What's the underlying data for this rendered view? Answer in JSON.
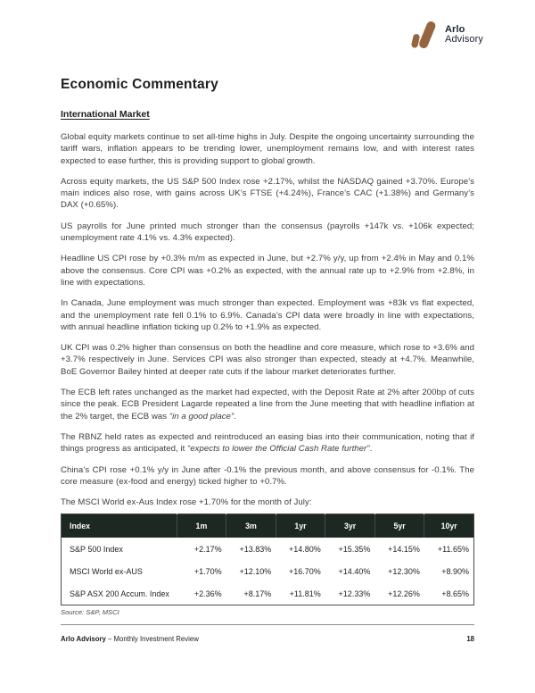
{
  "colors": {
    "logo_mark": "#96653F",
    "table_header_bg": "#1D2823"
  },
  "logo": {
    "brand_top": "Arlo",
    "brand_bottom": "Advisory"
  },
  "page_title": "Economic Commentary",
  "section_title": "International Market",
  "paragraphs": [
    {
      "segments": [
        {
          "text": "Global equity markets continue to set all-time highs in July. Despite the ongoing uncertainty surrounding the tariff wars, inflation appears to be trending lower, unemployment remains low, and with interest rates expected to ease further, this is providing support to global growth.",
          "italic": false
        }
      ]
    },
    {
      "segments": [
        {
          "text": "Across equity markets, the US S&P 500 Index rose +2.17%, whilst the NASDAQ gained +3.70%. Europe’s main indices also rose, with gains across UK’s FTSE (+4.24%), France’s CAC (+1.38%) and Germany’s DAX (+0.65%).",
          "italic": false
        }
      ]
    },
    {
      "segments": [
        {
          "text": "US payrolls for June printed much stronger than the consensus (payrolls +147k vs. +106k expected; unemployment rate 4.1% vs. 4.3% expected).",
          "italic": false
        }
      ]
    },
    {
      "segments": [
        {
          "text": "Headline US CPI rose by +0.3% m/m as expected in June, but +2.7% y/y, up from +2.4% in May and 0.1% above the consensus. Core CPI was +0.2% as expected, with the annual rate up to +2.9% from +2.8%, in line with expectations.",
          "italic": false
        }
      ]
    },
    {
      "segments": [
        {
          "text": "In Canada, June employment was much stronger than expected. Employment was +83k vs flat expected, and the unemployment rate fell 0.1% to 6.9%. Canada’s CPI data were broadly in line with expectations, with annual headline inflation ticking up 0.2% to +1.9% as expected.",
          "italic": false
        }
      ]
    },
    {
      "segments": [
        {
          "text": "UK CPI was 0.2% higher than consensus on both the headline and core measure, which rose to +3.6% and +3.7% respectively in June. Services CPI was also stronger than expected, steady at +4.7%. Meanwhile, BoE Governor Bailey hinted at deeper rate cuts if the labour market deteriorates further.",
          "italic": false
        }
      ]
    },
    {
      "segments": [
        {
          "text": "The ECB left rates unchanged as the market had expected, with the Deposit Rate at 2% after 200bp of cuts since the peak. ECB President Lagarde repeated a line from the June meeting that with headline inflation at the 2% target, the ECB was ",
          "italic": false
        },
        {
          "text": "“in a good place”",
          "italic": true
        },
        {
          "text": ".",
          "italic": false
        }
      ]
    },
    {
      "segments": [
        {
          "text": "The RBNZ held rates as expected and reintroduced an easing bias into their communication, noting that if things progress as anticipated, it ",
          "italic": false
        },
        {
          "text": "“expects to lower the Official Cash Rate further”",
          "italic": true
        },
        {
          "text": ".",
          "italic": false
        }
      ]
    },
    {
      "segments": [
        {
          "text": "China’s CPI rose +0.1% y/y in June after -0.1% the previous month, and above consensus for -0.1%. The core measure (ex-food and energy) ticked higher to +0.7%.",
          "italic": false
        }
      ]
    },
    {
      "segments": [
        {
          "text": "The MSCI World ex-Aus Index rose +1.70% for the month of July:",
          "italic": false
        }
      ]
    }
  ],
  "table": {
    "headers": [
      "Index",
      "1m",
      "3m",
      "1yr",
      "3yr",
      "5yr",
      "10yr"
    ],
    "rows": [
      [
        "S&P 500 Index",
        "+2.17%",
        "+13.83%",
        "+14.80%",
        "+15.35%",
        "+14.15%",
        "+11.65%"
      ],
      [
        "MSCI World ex-AUS",
        "+1.70%",
        "+12.10%",
        "+16.70%",
        "+14.40%",
        "+12.30%",
        "+8.90%"
      ],
      [
        "S&P ASX 200 Accum. Index",
        "+2.36%",
        "+8.17%",
        "+11.81%",
        "+12.33%",
        "+12.26%",
        "+8.65%"
      ]
    ]
  },
  "source_note": "Source: S&P, MSCI",
  "footer": {
    "brand": "Arlo Advisory",
    "rest": " – Monthly Investment Review",
    "page_number": "18"
  }
}
